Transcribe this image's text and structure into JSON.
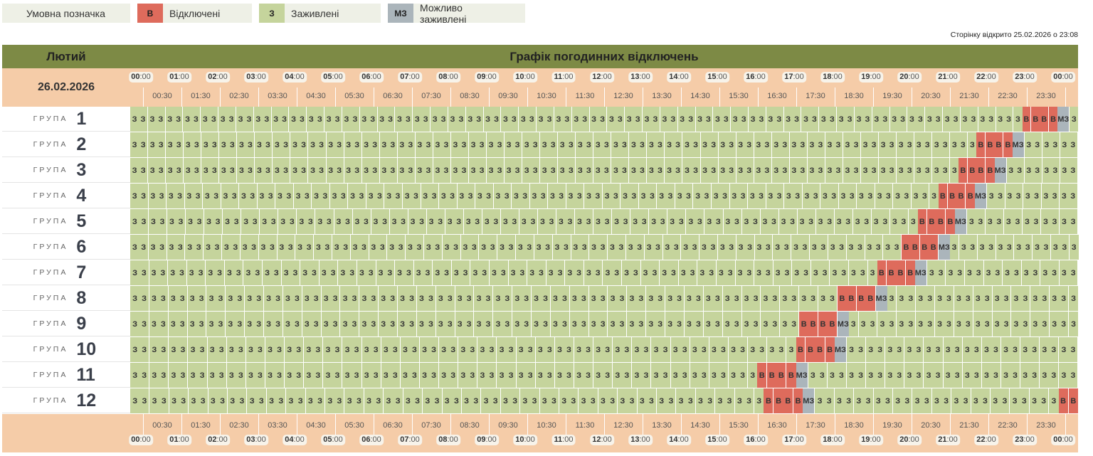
{
  "legend": {
    "heading": "Умовна позначка",
    "items": [
      {
        "code": "В",
        "label": "Відключені",
        "color": "#de6b5c"
      },
      {
        "code": "З",
        "label": "Заживлені",
        "color": "#c5d49c"
      },
      {
        "code": "МЗ",
        "label": "Можливо заживлені",
        "color": "#abb5bb"
      }
    ]
  },
  "opened_text": "Сторінку відкрито 25.02.2026 о 23:08",
  "header": {
    "month": "Лютий",
    "title": "Графік погодинних відключень"
  },
  "date": "26.02.2026",
  "hour_labels": [
    {
      "h": "00",
      "m": ":00"
    },
    {
      "h": "01",
      "m": ":00"
    },
    {
      "h": "02",
      "m": ":00"
    },
    {
      "h": "03",
      "m": ":00"
    },
    {
      "h": "04",
      "m": ":00"
    },
    {
      "h": "05",
      "m": ":00"
    },
    {
      "h": "06",
      "m": ":00"
    },
    {
      "h": "07",
      "m": ":00"
    },
    {
      "h": "08",
      "m": ":00"
    },
    {
      "h": "09",
      "m": ":00"
    },
    {
      "h": "10",
      "m": ":00"
    },
    {
      "h": "11",
      "m": ":00"
    },
    {
      "h": "12",
      "m": ":00"
    },
    {
      "h": "13",
      "m": ":00"
    },
    {
      "h": "14",
      "m": ":00"
    },
    {
      "h": "15",
      "m": ":00"
    },
    {
      "h": "16",
      "m": ":00"
    },
    {
      "h": "17",
      "m": ":00"
    },
    {
      "h": "18",
      "m": ":00"
    },
    {
      "h": "19",
      "m": ":00"
    },
    {
      "h": "20",
      "m": ":00"
    },
    {
      "h": "21",
      "m": ":00"
    },
    {
      "h": "22",
      "m": ":00"
    },
    {
      "h": "23",
      "m": ":00"
    },
    {
      "h": "00",
      "m": ":00"
    }
  ],
  "half_labels": [
    "00:30",
    "01:30",
    "02:30",
    "03:30",
    "04:30",
    "05:30",
    "06:30",
    "07:30",
    "08:30",
    "09:30",
    "10:30",
    "11:30",
    "12:30",
    "13:30",
    "14:30",
    "15:30",
    "16:30",
    "17:30",
    "18:30",
    "19:30",
    "20:30",
    "21:30",
    "22:30",
    "23:30"
  ],
  "group_word": "ГРУПА",
  "codes": {
    "Z": "З",
    "V": "В",
    "M": "МЗ"
  },
  "groups": [
    {
      "num": "1",
      "slots": "ZZZZZZZZZZZZZZZZZZZZZZZZZZZZZZZZZZZZZZZZZZZZZZZZZZZZZZZZZZZZZZZZZZZZZZZZZZZZZZZZZZZZZZZZZZZZZZZZZZZZZVVVVMZ"
    },
    {
      "num": "2",
      "slots": "ZZZZZZZZZZZZZZZZZZZZZZZZZZZZZZZZZZZZZZZZZZZZZZZZZZZZZZZZZZZZZZZZZZZZZZZZZZZZZZZZZZZZZZZZZZZZZZZVVVVMZZZZZZ"
    },
    {
      "num": "3",
      "slots": "ZZZZZZZZZZZZZZZZZZZZZZZZZZZZZZZZZZZZZZZZZZZZZZZZZZZZZZZZZZZZZZZZZZZZZZZZZZZZZZZZZZZZZZZZZZZZZVVVVMZZZZZZZZ"
    },
    {
      "num": "4",
      "slots": "ZZZZZZZZZZZZZZZZZZZZZZZZZZZZZZZZZZZZZZZZZZZZZZZZZZZZZZZZZZZZZZZZZZZZZZZZZZZZZZZZZZZZZZZZZVVVVMZZZZZZZZZZ"
    },
    {
      "num": "5",
      "slots": "ZZZZZZZZZZZZZZZZZZZZZZZZZZZZZZZZZZZZZZZZZZZZZZZZZZZZZZZZZZZZZZZZZZZZZZZZZZZZZZZZZZZZZVVVVMZZZZZZZZZZZZ"
    },
    {
      "num": "6",
      "slots": "ZZZZZZZZZZZZZZZZZZZZZZZZZZZZZZZZZZZZZZZZZZZZZZZZZZZZZZZZZZZZZZZZZZZZZZZZZZZZZZZZZZZZVVVVMZZZZZZZZZZZZZZ"
    },
    {
      "num": "7",
      "slots": "ZZZZZZZZZZZZZZZZZZZZZZZZZZZZZZZZZZZZZZZZZZZZZZZZZZZZZZZZZZZZZZZZZZZZZZZZZZZZZZZVVVVMZZZZZZZZZZZZZZZZ"
    },
    {
      "num": "8",
      "slots": "ZZZZZZZZZZZZZZZZZZZZZZZZZZZZZZZZZZZZZZZZZZZZZZZZZZZZZZZZZZZZZZZZZZZZZZZZZZVVVVMZZZZZZZZZZZZZZZZZZZZ"
    },
    {
      "num": "9",
      "slots": "ZZZZZZZZZZZZZZZZZZZZZZZZZZZZZZZZZZZZZZZZZZZZZZZZZZZZZZZZZZZZZZZZZZZZZZVVVVMZZZZZZZZZZZZZZZZZZZZZZZZ"
    },
    {
      "num": "10",
      "slots": "ZZZZZZZZZZZZZZZZZZZZZZZZZZZZZZZZZZZZZZZZZZZZZZZZZZZZZZZZZZZZZZZZZZZZZVVVVMZZZZZZZZZZZZZZZZZZZZZZZZ"
    },
    {
      "num": "11",
      "slots": "ZZZZZZZZZZZZZZZZZZZZZZZZZZZZZZZZZZZZZZZZZZZZZZZZZZZZZZZZZZZZZZZZZVVVVMZZZZZZZZZZZZZZZZZZZZZZZZZZZZ"
    },
    {
      "num": "12",
      "slots": "ZZZZZZZZZZZZZZZZZZZZZZZZZZZZZZZZZZZZZZZZZZZZZZZZZZZZZZZZZZZZZZZZZVVVVMZZZZZZZZZZZZZZZZZZZZZZZZZVV"
    }
  ]
}
